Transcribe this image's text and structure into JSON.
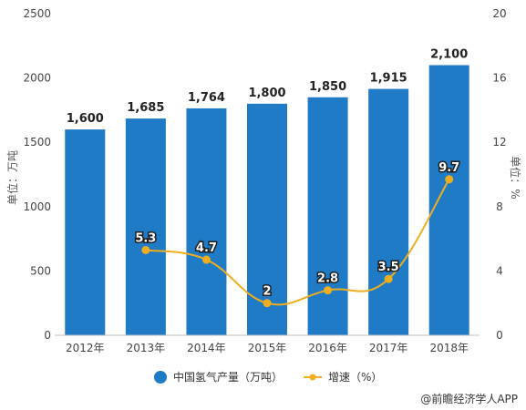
{
  "chart_data": {
    "type": "bar",
    "categories": [
      "2012年",
      "2013年",
      "2014年",
      "2015年",
      "2016年",
      "2017年",
      "2018年"
    ],
    "series": [
      {
        "name": "中国氢气产量（万吨）",
        "type": "bar",
        "axis": "left",
        "values": [
          1600,
          1685,
          1764,
          1800,
          1850,
          1915,
          2100
        ],
        "labels": [
          "1,600",
          "1,685",
          "1,764",
          "1,800",
          "1,850",
          "1,915",
          "2,100"
        ],
        "color": "#1f7bc6"
      },
      {
        "name": "增速（%）",
        "type": "line",
        "axis": "right",
        "values": [
          null,
          5.3,
          4.7,
          2,
          2.8,
          3.5,
          9.7
        ],
        "labels": [
          "",
          "5.3",
          "4.7",
          "2",
          "2.8",
          "3.5",
          "9.7"
        ],
        "color": "#f0ad1e"
      }
    ],
    "y_left": {
      "label": "单位：万吨",
      "min": 0,
      "max": 2500,
      "ticks": [
        "0",
        "500",
        "1000",
        "1500",
        "2000",
        "2500"
      ]
    },
    "y_right": {
      "label": "单位：%",
      "min": 0,
      "max": 20,
      "ticks": [
        "0",
        "4",
        "8",
        "12",
        "16",
        "20"
      ]
    },
    "legend_position": "bottom",
    "grid": false
  },
  "source": "@前瞻经济学人APP"
}
